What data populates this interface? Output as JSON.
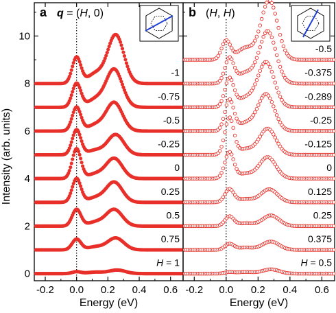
{
  "chart_data": {
    "type": "scatter",
    "ylabel": "Intensity (arb. units)",
    "ylim": [
      -0.3,
      11.4
    ],
    "yticks": [
      0,
      2,
      4,
      6,
      8,
      10
    ],
    "marker_color": "#e8302a",
    "panels": [
      {
        "letter": "a",
        "title_prefix": "q",
        "title_suffix": " = (H, 0)",
        "xlabel": "Energy (eV)",
        "xlim": [
          -0.27,
          0.68
        ],
        "xticks": [
          -0.2,
          0.0,
          0.2,
          0.4,
          0.6
        ],
        "xtick_labels": [
          "-0.2",
          "0.0",
          "0.2",
          "0.4",
          "0.6"
        ],
        "marker": "filled",
        "zero_line": 0.0,
        "series": [
          {
            "label": "-1",
            "baseline": 8.0,
            "peak_e": 0.0,
            "peak_h": 1.1,
            "mag_e": 0.25,
            "mag_h": 2.05
          },
          {
            "label": "-0.75",
            "baseline": 7.0,
            "peak_e": 0.0,
            "peak_h": 1.0,
            "mag_e": 0.24,
            "mag_h": 1.6
          },
          {
            "label": "-0.5",
            "baseline": 6.0,
            "peak_e": 0.0,
            "peak_h": 1.0,
            "mag_e": 0.24,
            "mag_h": 1.2
          },
          {
            "label": "-0.25",
            "baseline": 5.0,
            "peak_e": 0.0,
            "peak_h": 1.05,
            "mag_e": 0.25,
            "mag_h": 0.85
          },
          {
            "label": "0",
            "baseline": 4.0,
            "peak_e": 0.0,
            "peak_h": 1.25,
            "mag_e": 0.24,
            "mag_h": 0.85
          },
          {
            "label": "0.25",
            "baseline": 3.0,
            "peak_e": 0.0,
            "peak_h": 1.0,
            "mag_e": 0.24,
            "mag_h": 0.85
          },
          {
            "label": "0.5",
            "baseline": 2.0,
            "peak_e": 0.0,
            "peak_h": 0.7,
            "mag_e": 0.24,
            "mag_h": 0.7
          },
          {
            "label": "0.75",
            "baseline": 1.0,
            "peak_e": 0.0,
            "peak_h": 0.45,
            "mag_e": 0.25,
            "mag_h": 0.5
          },
          {
            "label": "H = 1",
            "baseline": 0.0,
            "peak_e": 0.0,
            "peak_h": 0.08,
            "mag_e": 0.26,
            "mag_h": 0.15
          }
        ]
      },
      {
        "letter": "b",
        "title_prefix": "",
        "title_suffix": "(H, H)",
        "xlabel": "Energy (eV)",
        "xlim": [
          -0.27,
          0.68
        ],
        "xticks": [
          -0.2,
          0.0,
          0.2,
          0.4,
          0.6
        ],
        "xtick_labels": [
          "-0.2",
          "0.0",
          "0.2",
          "0.4",
          "0.6"
        ],
        "marker": "open",
        "zero_line": 0.0,
        "series": [
          {
            "label": "-0.5",
            "baseline": 9.0,
            "peak_e": 0.0,
            "peak_h": 0.8,
            "mag_e": 0.27,
            "mag_h": 2.5
          },
          {
            "label": "-0.375",
            "baseline": 8.0,
            "peak_e": 0.02,
            "peak_h": 1.05,
            "mag_e": 0.26,
            "mag_h": 2.2
          },
          {
            "label": "-0.289",
            "baseline": 7.0,
            "peak_e": 0.02,
            "peak_h": 1.2,
            "mag_e": 0.25,
            "mag_h": 1.9
          },
          {
            "label": "-0.25",
            "baseline": 6.0,
            "peak_e": 0.02,
            "peak_h": 1.3,
            "mag_e": 0.25,
            "mag_h": 1.55
          },
          {
            "label": "-0.125",
            "baseline": 5.0,
            "peak_e": 0.02,
            "peak_h": 1.55,
            "mag_e": 0.26,
            "mag_h": 1.1
          },
          {
            "label": "0",
            "baseline": 4.0,
            "peak_e": 0.02,
            "peak_h": 1.1,
            "mag_e": 0.26,
            "mag_h": 0.9
          },
          {
            "label": "0.125",
            "baseline": 3.0,
            "peak_e": 0.02,
            "peak_h": 0.55,
            "mag_e": 0.27,
            "mag_h": 0.55
          },
          {
            "label": "0.25",
            "baseline": 2.0,
            "peak_e": 0.02,
            "peak_h": 0.4,
            "mag_e": 0.28,
            "mag_h": 0.45
          },
          {
            "label": "0.375",
            "baseline": 1.0,
            "peak_e": 0.02,
            "peak_h": 0.25,
            "mag_e": 0.28,
            "mag_h": 0.35
          },
          {
            "label": "H = 0.5",
            "baseline": 0.0,
            "peak_e": 0.02,
            "peak_h": 0.06,
            "mag_e": 0.28,
            "mag_h": 0.18
          }
        ]
      }
    ]
  }
}
